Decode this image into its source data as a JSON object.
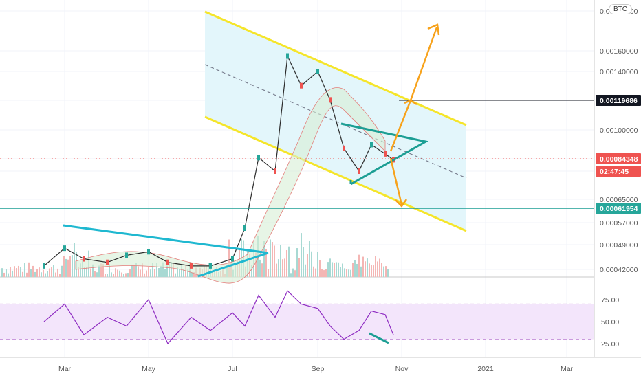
{
  "chart_data": {
    "type": "line",
    "symbol_badge": "BTC",
    "x_tick_labels": [
      "Mar",
      "May",
      "Jul",
      "Sep",
      "Nov",
      "2021",
      "Mar"
    ],
    "price_axis_labels": [
      "0.00180000",
      "0.00160000",
      "0.00140000",
      "0.00100000",
      "0.00065000",
      "0.00057000",
      "0.00049000",
      "0.00042000"
    ],
    "rsi_axis_labels": [
      "75.00",
      "50.00",
      "25.00"
    ],
    "rsi_band": [
      30,
      70
    ],
    "price_tags": [
      {
        "label": "0.00119686",
        "value": 0.00119686,
        "color": "#131722",
        "text_color": "#ffffff"
      },
      {
        "label": "0.00084348",
        "value": 0.00084348,
        "color": "#ef5350",
        "text_color": "#ffffff"
      },
      {
        "label": "02:47:45",
        "value": 0.0008,
        "color": "#ef5350",
        "text_color": "#ffffff"
      },
      {
        "label": "0.00061954",
        "value": 0.00061954,
        "color": "#26a69a",
        "text_color": "#ffffff"
      }
    ],
    "series": [
      {
        "name": "Close",
        "dates": [
          "2020-02-15",
          "2020-03-01",
          "2020-03-15",
          "2020-04-01",
          "2020-04-15",
          "2020-05-01",
          "2020-05-15",
          "2020-06-01",
          "2020-06-15",
          "2020-07-01",
          "2020-07-10",
          "2020-07-20",
          "2020-08-01",
          "2020-08-10",
          "2020-08-20",
          "2020-09-01",
          "2020-09-10",
          "2020-09-20",
          "2020-10-01",
          "2020-10-10",
          "2020-10-20",
          "2020-10-26"
        ],
        "values": [
          0.00043,
          0.00048,
          0.00045,
          0.00044,
          0.00046,
          0.00047,
          0.00044,
          0.00043,
          0.00043,
          0.00045,
          0.00055,
          0.00085,
          0.0008,
          0.00155,
          0.0013,
          0.0014,
          0.0012,
          0.0009,
          0.0008,
          0.00092,
          0.00087,
          0.00084
        ]
      },
      {
        "name": "RSI",
        "dates": [
          "2020-02-15",
          "2020-03-01",
          "2020-03-15",
          "2020-04-01",
          "2020-04-15",
          "2020-05-01",
          "2020-05-15",
          "2020-06-01",
          "2020-06-15",
          "2020-07-01",
          "2020-07-10",
          "2020-07-20",
          "2020-08-01",
          "2020-08-10",
          "2020-08-20",
          "2020-09-01",
          "2020-09-10",
          "2020-09-20",
          "2020-10-01",
          "2020-10-10",
          "2020-10-20",
          "2020-10-26"
        ],
        "values": [
          50,
          70,
          35,
          55,
          45,
          75,
          25,
          55,
          40,
          60,
          45,
          80,
          55,
          85,
          70,
          65,
          45,
          30,
          40,
          62,
          58,
          35
        ]
      }
    ]
  }
}
